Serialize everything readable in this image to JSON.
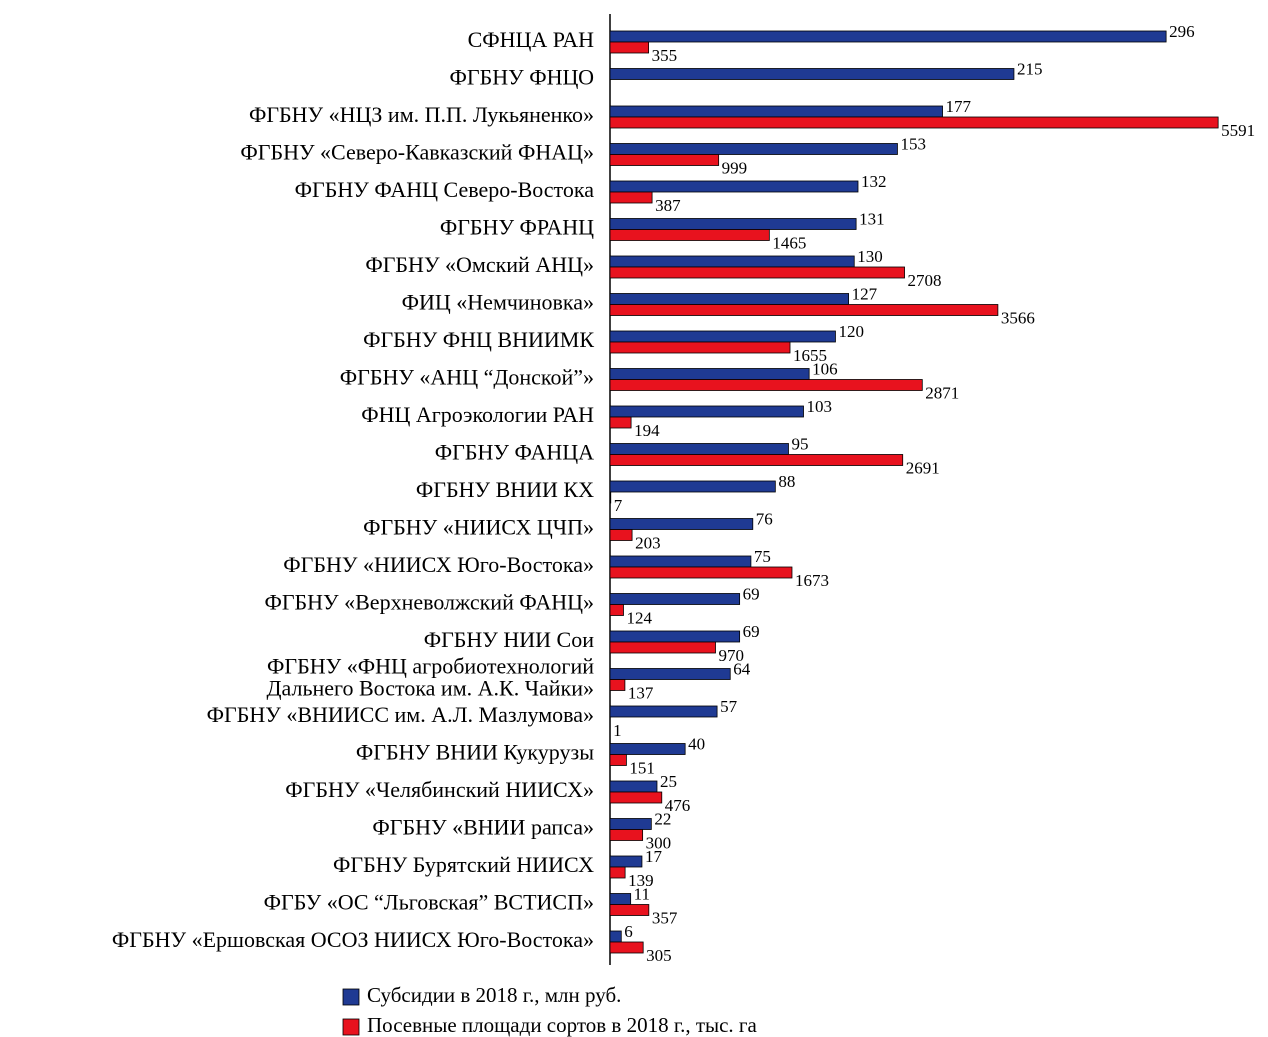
{
  "chart_data": {
    "type": "hbar",
    "categories": [
      "СФНЦА РАН",
      "ФГБНУ ФНЦО",
      "ФГБНУ «НЦЗ им. П.П. Лукьяненко»",
      "ФГБНУ «Северо-Кавказский ФНАЦ»",
      "ФГБНУ ФАНЦ Северо-Востока",
      "ФГБНУ ФРАНЦ",
      "ФГБНУ «Омский АНЦ»",
      "ФИЦ «Немчиновка»",
      "ФГБНУ ФНЦ ВНИИМК",
      "ФГБНУ «АНЦ “Донской”»",
      "ФНЦ Агроэкологии РАН",
      "ФГБНУ ФАНЦА",
      "ФГБНУ ВНИИ КХ",
      "ФГБНУ «НИИСХ ЦЧП»",
      "ФГБНУ «НИИСХ Юго-Востока»",
      "ФГБНУ «Верхневолжский ФАНЦ»",
      "ФГБНУ НИИ Сои",
      "ФГБНУ «ФНЦ агробиотехнологий\nДальнего Востока им. А.К. Чайки»",
      "ФГБНУ «ВНИИСС им. А.Л. Мазлумова»",
      "ФГБНУ ВНИИ Кукурузы",
      "ФГБНУ «Челябинский НИИСХ»",
      "ФГБНУ «ВНИИ рапса»",
      "ФГБНУ Бурятский НИИСХ",
      "ФГБУ «ОС “Льговская” ВСТИСП»",
      "ФГБНУ «Ершовская ОСОЗ НИИСХ Юго-Востока»"
    ],
    "series": [
      {
        "name": "Субсидии в 2018 г., млн руб.",
        "color": "#1f3a93",
        "values": [
          296,
          215,
          177,
          153,
          132,
          131,
          130,
          127,
          120,
          106,
          103,
          95,
          88,
          76,
          75,
          69,
          69,
          64,
          57,
          40,
          25,
          22,
          17,
          11,
          6
        ]
      },
      {
        "name": "Посевные площади сортов в 2018 г., тыс. га",
        "color": "#e8121e",
        "axis": "x2",
        "values": [
          355,
          null,
          5591,
          999,
          387,
          1465,
          2708,
          3566,
          1655,
          2871,
          194,
          2691,
          7,
          203,
          1673,
          124,
          970,
          137,
          1,
          151,
          476,
          300,
          139,
          357,
          305
        ]
      }
    ],
    "xlim": [
      0,
      330
    ],
    "x2lim": [
      0,
      5700
    ]
  }
}
